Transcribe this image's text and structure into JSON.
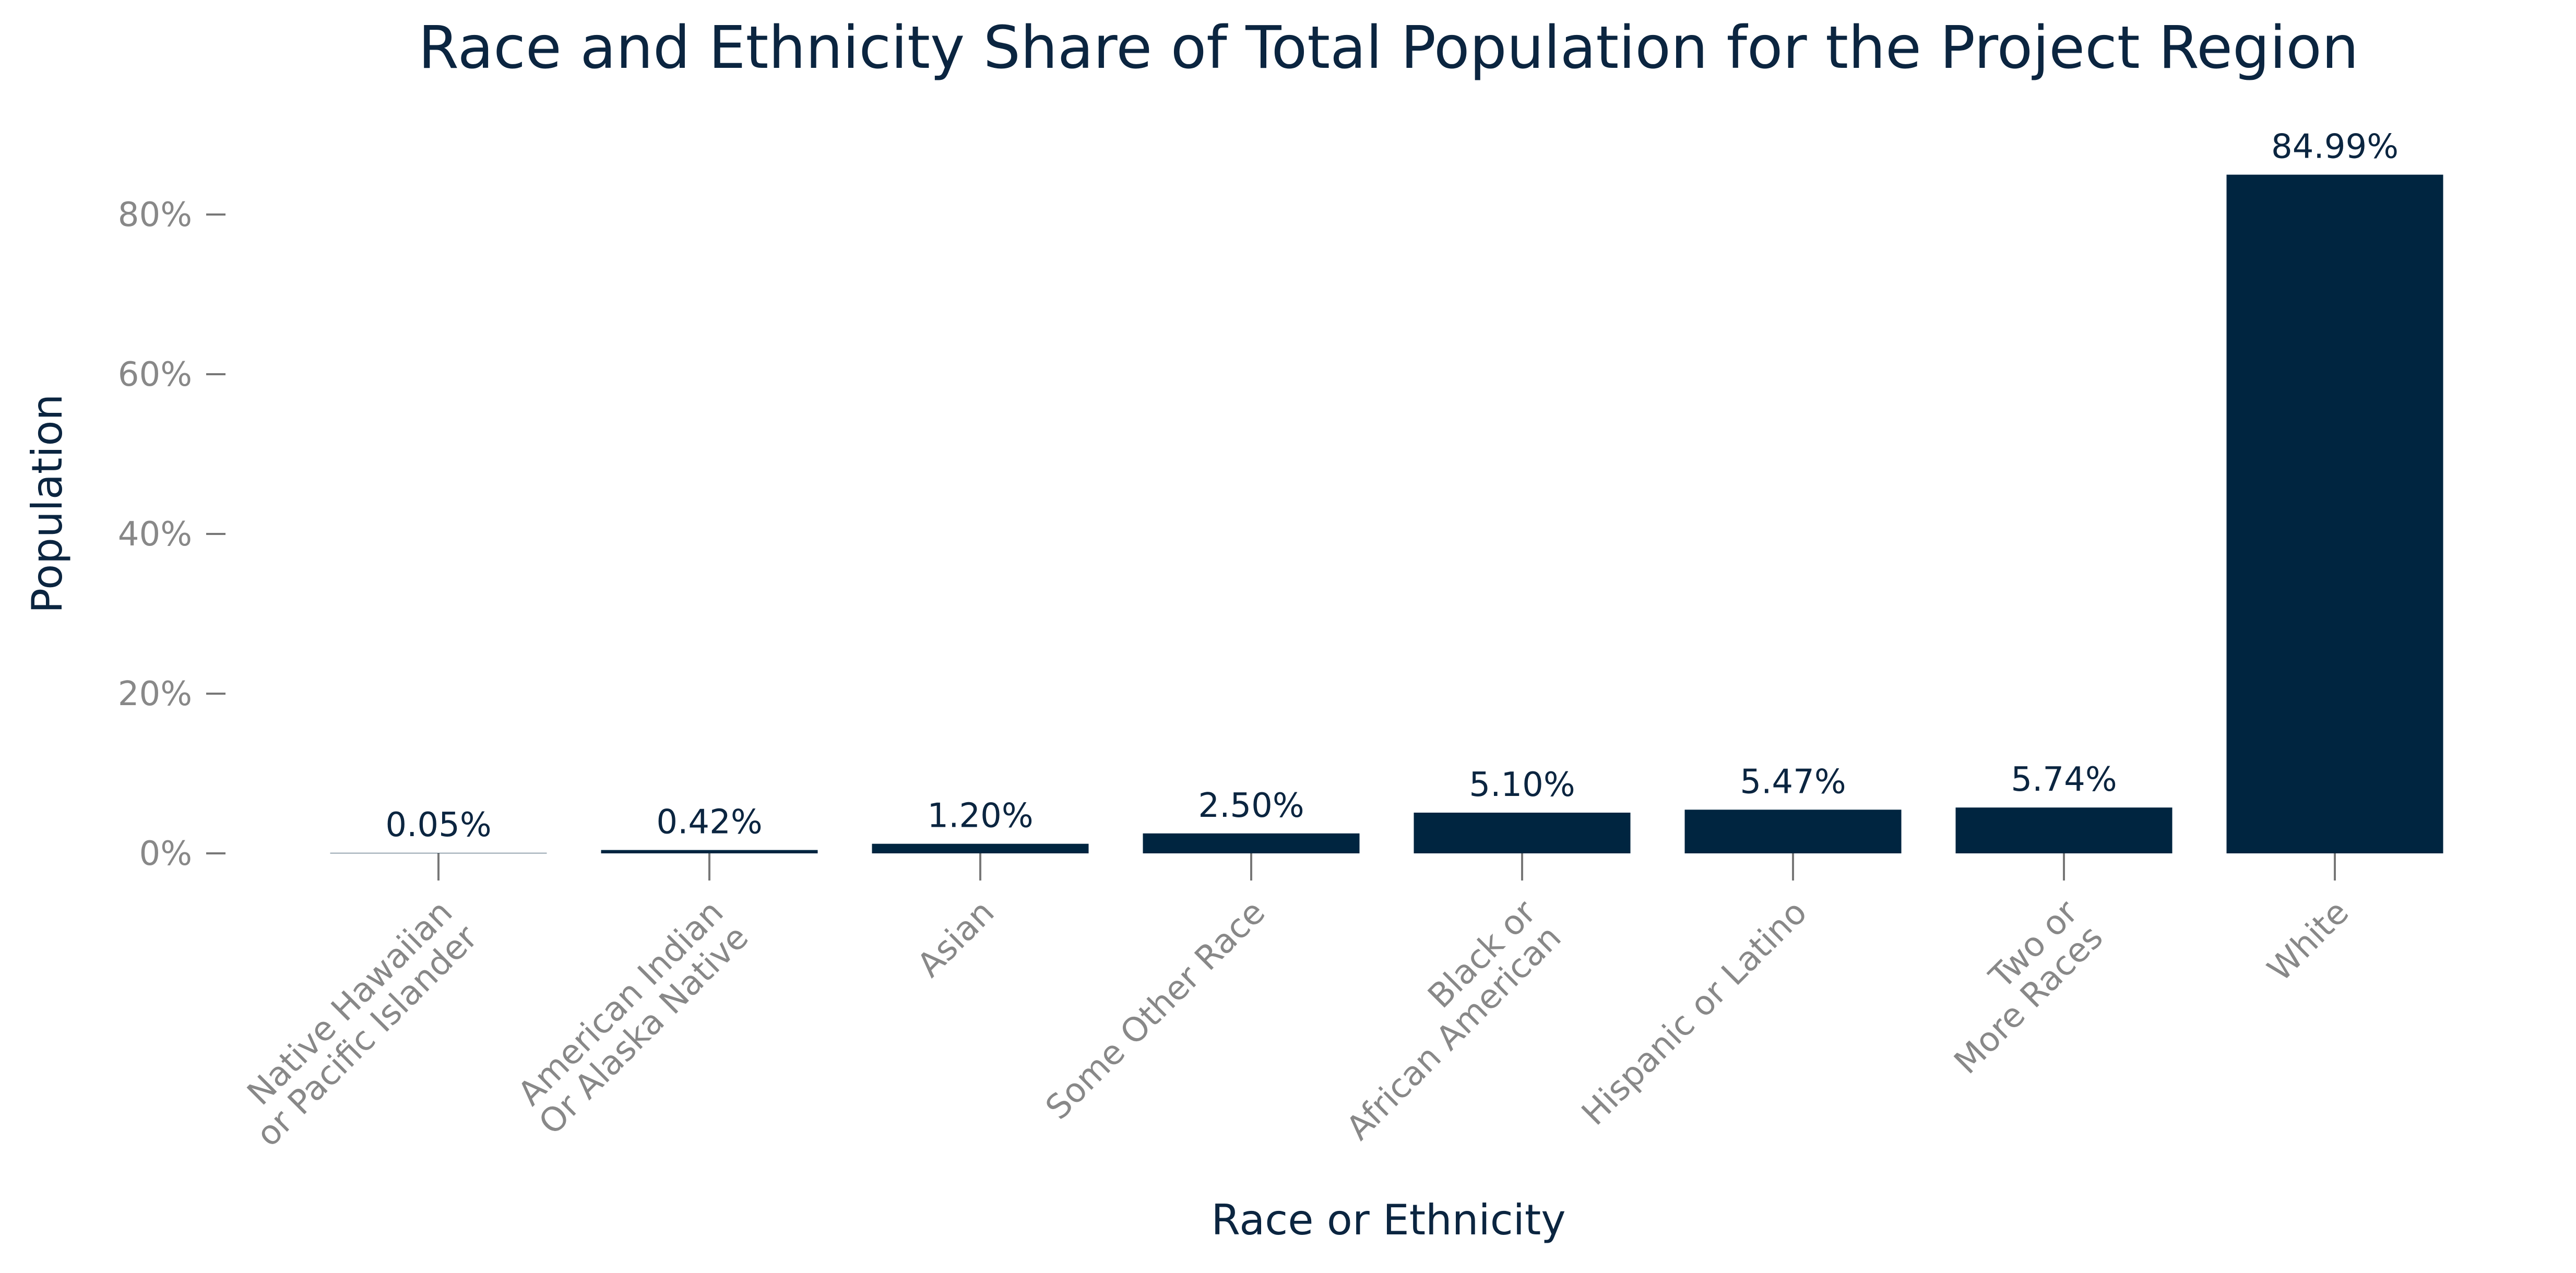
{
  "colors": {
    "bar": "#002540",
    "title": "#0b2540",
    "tick_text": "#888888",
    "tick_line": "#777777",
    "background": "#ffffff"
  },
  "chart_data": {
    "type": "bar",
    "title": "Race and Ethnicity Share of Total Population for the Project Region",
    "xlabel": "Race or Ethnicity",
    "ylabel": "Population",
    "categories": [
      [
        "Native Hawaiian",
        "or Pacific Islander"
      ],
      [
        "American Indian",
        "Or Alaska Native"
      ],
      [
        "Asian"
      ],
      [
        "Some Other Race"
      ],
      [
        "Black or",
        "African American"
      ],
      [
        "Hispanic or Latino"
      ],
      [
        "Two or",
        "More Races"
      ],
      [
        "White"
      ]
    ],
    "values": [
      0.05,
      0.42,
      1.2,
      2.5,
      5.1,
      5.47,
      5.74,
      84.99
    ],
    "value_labels": [
      "0.05%",
      "0.42%",
      "1.20%",
      "2.50%",
      "5.10%",
      "5.47%",
      "5.74%",
      "84.99%"
    ],
    "ylim": [
      0,
      90
    ],
    "yticks": [
      0,
      20,
      40,
      60,
      80
    ],
    "ytick_labels": [
      "0%",
      "20%",
      "40%",
      "60%",
      "80%"
    ],
    "grid": false,
    "legend": "none"
  }
}
